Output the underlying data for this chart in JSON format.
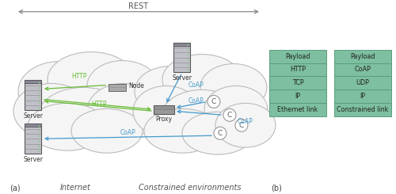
{
  "bg_color": "#ffffff",
  "cloud_color": "#f5f5f5",
  "cloud_edge": "#bbbbbb",
  "table_fill": "#7dbfa0",
  "table_edge": "#5a9e7d",
  "rest_arrow_color": "#888888",
  "http_color": "#66bb33",
  "coap_color": "#4499cc",
  "title_label": "REST",
  "label_a": "(a)",
  "label_b": "(b)",
  "label_internet": "Internet",
  "label_constrained": "Constrained environments",
  "table1_rows": [
    "Payload",
    "HTTP",
    "TCP",
    "IP",
    "Ethernet link"
  ],
  "table2_rows": [
    "Payload",
    "CoAP",
    "UDP",
    "IP",
    "Constrained link"
  ],
  "node_label": "Node",
  "proxy_label": "Proxy",
  "server_labels": [
    "Server",
    "Server",
    "Server"
  ]
}
